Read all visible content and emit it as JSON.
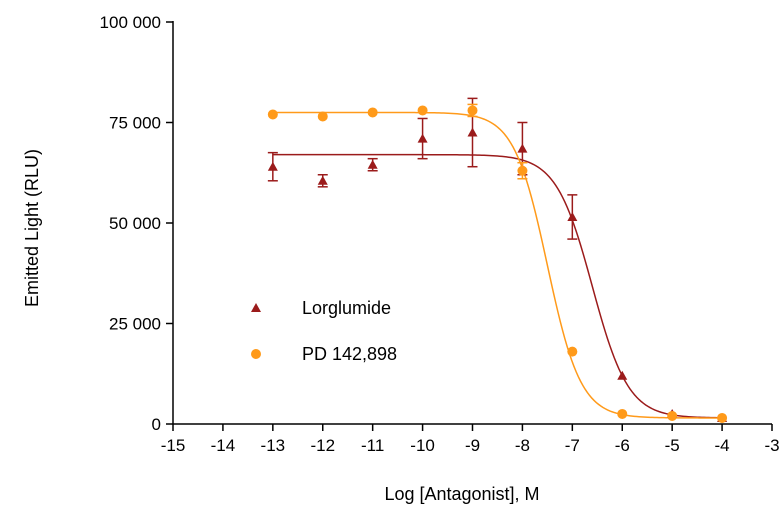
{
  "chart_data": {
    "type": "scatter",
    "xlabel": "Log [Antagonist], M",
    "ylabel": "Emitted Light (RLU)",
    "xlim": [
      -15,
      -3
    ],
    "ylim": [
      0,
      100000
    ],
    "x_ticks": [
      -15,
      -14,
      -13,
      -12,
      -11,
      -10,
      -9,
      -8,
      -7,
      -6,
      -5,
      -4,
      -3
    ],
    "x_tick_labels": [
      "-15",
      "-14",
      "-13",
      "-12",
      "-11",
      "-10",
      "-9",
      "-8",
      "-7",
      "-6",
      "-5",
      "-4",
      "-3"
    ],
    "y_ticks": [
      0,
      25000,
      50000,
      75000,
      100000
    ],
    "y_tick_labels": [
      "0",
      "25 000",
      "50 000",
      "75 000",
      "100 000"
    ],
    "grid": false,
    "legend_position": "lower-left",
    "series": [
      {
        "name": "Lorglumide",
        "marker": "triangle",
        "color": "#9b1b1b",
        "points": [
          {
            "x": -13,
            "y": 64000,
            "err": 3500
          },
          {
            "x": -12,
            "y": 60500,
            "err": 1500
          },
          {
            "x": -11,
            "y": 64500,
            "err": 1500
          },
          {
            "x": -10,
            "y": 71000,
            "err": 5000
          },
          {
            "x": -9,
            "y": 72500,
            "err": 8500
          },
          {
            "x": -8,
            "y": 68500,
            "err": 6500
          },
          {
            "x": -7,
            "y": 51500,
            "err": 5500
          },
          {
            "x": -6,
            "y": 12000,
            "err": 0
          },
          {
            "x": -5,
            "y": 2500,
            "err": 0
          },
          {
            "x": -4,
            "y": 1500,
            "err": 0
          }
        ],
        "fit": {
          "top": 67000,
          "bottom": 1500,
          "log_ic50": -6.6,
          "hill": 1.2
        }
      },
      {
        "name": "PD 142,898",
        "marker": "circle",
        "color": "#ff9a1a",
        "points": [
          {
            "x": -13,
            "y": 77000,
            "err": 0
          },
          {
            "x": -12,
            "y": 76500,
            "err": 0
          },
          {
            "x": -11,
            "y": 77500,
            "err": 0
          },
          {
            "x": -10,
            "y": 78000,
            "err": 0
          },
          {
            "x": -9,
            "y": 78000,
            "err": 1500
          },
          {
            "x": -8,
            "y": 63000,
            "err": 2000
          },
          {
            "x": -7,
            "y": 18000,
            "err": 0
          },
          {
            "x": -6,
            "y": 2500,
            "err": 0
          },
          {
            "x": -5,
            "y": 2000,
            "err": 0
          },
          {
            "x": -4,
            "y": 1500,
            "err": 0
          }
        ],
        "fit": {
          "top": 77500,
          "bottom": 1500,
          "log_ic50": -7.5,
          "hill": 1.3
        }
      }
    ]
  }
}
